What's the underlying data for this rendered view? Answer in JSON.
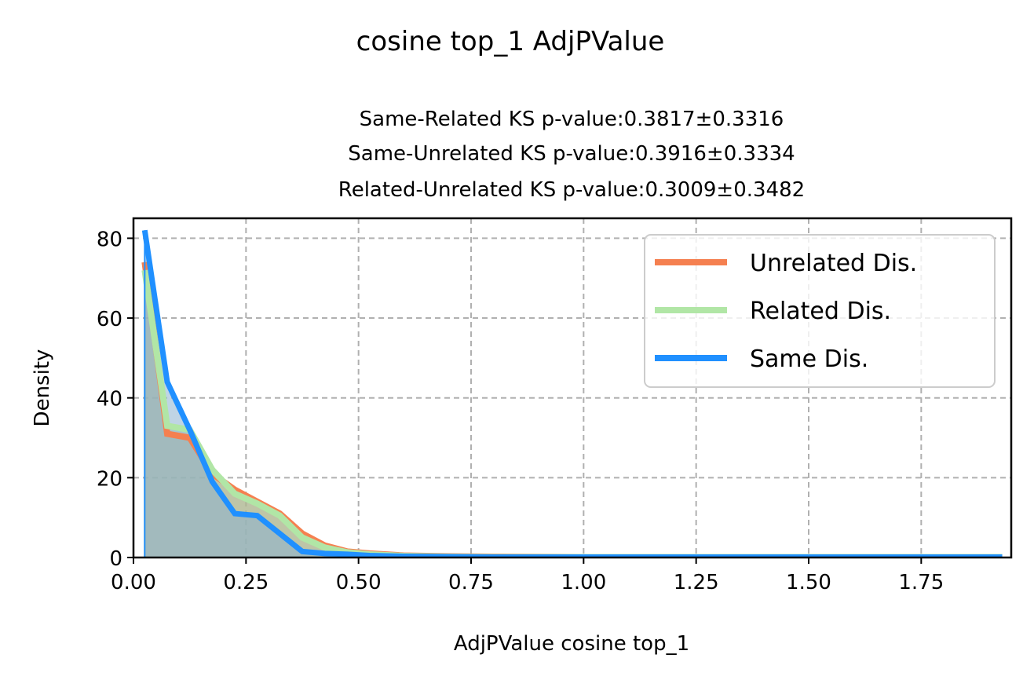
{
  "chart_data": {
    "type": "area",
    "suptitle": "cosine top_1 AdjPValue",
    "title_lines": [
      "Same-Related KS p-value:0.3817±0.3316",
      "Same-Unrelated KS p-value:0.3916±0.3334",
      "Related-Unrelated KS p-value:0.3009±0.3482"
    ],
    "xlabel": "AdjPValue cosine top_1",
    "ylabel": "Density",
    "xlim": [
      0.0,
      1.95
    ],
    "ylim": [
      0,
      85
    ],
    "xticks": [
      "0.00",
      "0.25",
      "0.50",
      "0.75",
      "1.00",
      "1.25",
      "1.50",
      "1.75"
    ],
    "xtick_values": [
      0.0,
      0.25,
      0.5,
      0.75,
      1.0,
      1.25,
      1.5,
      1.75
    ],
    "yticks": [
      "0",
      "20",
      "40",
      "60",
      "80"
    ],
    "ytick_values": [
      0,
      20,
      40,
      60,
      80
    ],
    "grid": true,
    "legend_position": "top-right",
    "series": [
      {
        "name": "Unrelated Dis.",
        "color": "#f58050",
        "fill": "#d09070",
        "x": [
          0.025,
          0.075,
          0.125,
          0.175,
          0.225,
          0.275,
          0.325,
          0.375,
          0.425,
          0.475,
          0.525,
          0.6,
          0.7,
          0.8,
          1.0,
          1.25,
          1.5,
          1.75,
          1.93
        ],
        "values": [
          74,
          31,
          30,
          21,
          17,
          14,
          11,
          6,
          3,
          1.5,
          1,
          0.5,
          0.3,
          0.2,
          0.1,
          0.1,
          0.1,
          0.1,
          0.1
        ]
      },
      {
        "name": "Related Dis.",
        "color": "#b1e6a6",
        "fill": "#9ec8a0",
        "x": [
          0.025,
          0.075,
          0.125,
          0.175,
          0.225,
          0.275,
          0.325,
          0.375,
          0.425,
          0.475,
          0.525,
          0.6,
          0.7,
          0.8,
          1.0,
          1.25,
          1.5,
          1.75,
          1.93
        ],
        "values": [
          72,
          33,
          32,
          22,
          16,
          13.5,
          10.5,
          5,
          2.5,
          1.3,
          0.8,
          0.4,
          0.2,
          0.1,
          0.1,
          0.1,
          0.1,
          0.1,
          0.1
        ]
      },
      {
        "name": "Same Dis.",
        "color": "#2090ff",
        "fill": "#8ab0d0",
        "x": [
          0.025,
          0.075,
          0.125,
          0.175,
          0.225,
          0.275,
          0.325,
          0.375,
          0.425,
          0.475,
          0.525,
          0.6,
          0.7,
          0.8,
          1.0,
          1.25,
          1.5,
          1.75,
          1.93
        ],
        "values": [
          82,
          44,
          32,
          19,
          11,
          10.5,
          6,
          1.5,
          1.0,
          0.8,
          0.5,
          0.3,
          0.2,
          0.1,
          0.1,
          0.1,
          0.1,
          0.1,
          0.1
        ]
      }
    ]
  }
}
